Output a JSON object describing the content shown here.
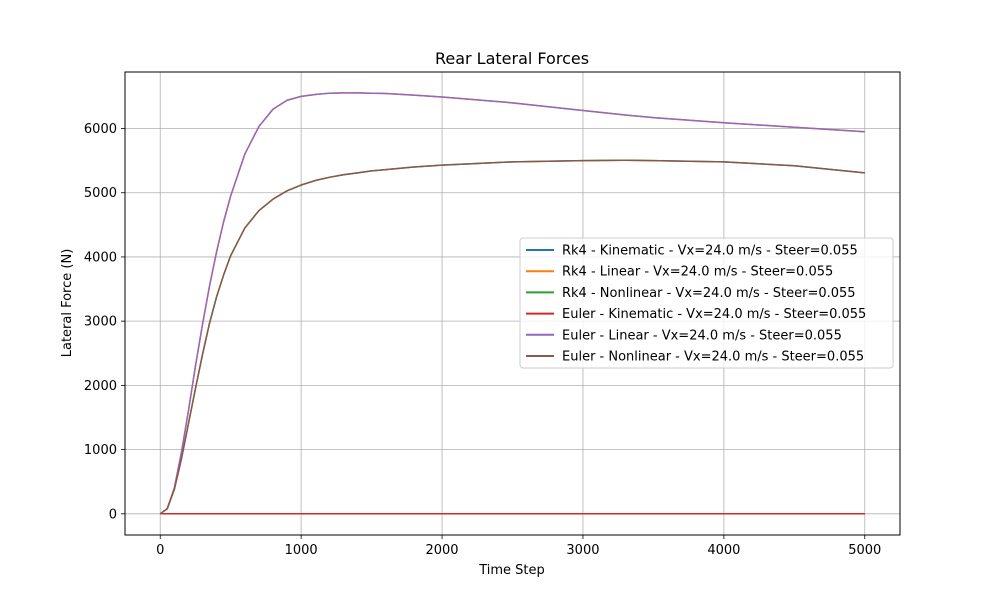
{
  "chart_data": {
    "type": "line",
    "title": "Rear Lateral Forces",
    "xlabel": "Time Step",
    "ylabel": "Lateral Force (N)",
    "xlim": [
      -250,
      5250
    ],
    "ylim": [
      -330,
      6880
    ],
    "xticks": [
      0,
      1000,
      2000,
      3000,
      4000,
      5000
    ],
    "yticks": [
      0,
      1000,
      2000,
      3000,
      4000,
      5000,
      6000
    ],
    "grid": true,
    "legend_position": "center-right",
    "x": [
      0,
      50,
      100,
      150,
      200,
      250,
      300,
      350,
      400,
      450,
      500,
      600,
      700,
      800,
      900,
      1000,
      1100,
      1200,
      1300,
      1400,
      1500,
      1600,
      1800,
      2000,
      2500,
      3000,
      3300,
      3500,
      4000,
      4500,
      5000
    ],
    "series": [
      {
        "name": "Rk4 - Kinematic - Vx=24.0 m/s - Steer=0.055",
        "color": "#1f77b4",
        "values": [
          0,
          0,
          0,
          0,
          0,
          0,
          0,
          0,
          0,
          0,
          0,
          0,
          0,
          0,
          0,
          0,
          0,
          0,
          0,
          0,
          0,
          0,
          0,
          0,
          0,
          0,
          0,
          0,
          0,
          0,
          0
        ]
      },
      {
        "name": "Rk4 - Linear - Vx=24.0 m/s - Steer=0.055",
        "color": "#ff7f0e",
        "values": [
          0,
          80,
          400,
          950,
          1600,
          2300,
          2950,
          3550,
          4080,
          4550,
          4950,
          5600,
          6030,
          6300,
          6440,
          6500,
          6530,
          6550,
          6555,
          6555,
          6550,
          6545,
          6520,
          6490,
          6400,
          6280,
          6210,
          6170,
          6090,
          6020,
          5950
        ]
      },
      {
        "name": "Rk4 - Nonlinear - Vx=24.0 m/s - Steer=0.055",
        "color": "#2ca02c",
        "values": [
          0,
          80,
          380,
          850,
          1400,
          1950,
          2480,
          2970,
          3380,
          3720,
          4020,
          4450,
          4720,
          4900,
          5030,
          5120,
          5190,
          5240,
          5280,
          5310,
          5340,
          5360,
          5400,
          5430,
          5480,
          5500,
          5505,
          5500,
          5480,
          5420,
          5310
        ]
      },
      {
        "name": "Euler - Kinematic - Vx=24.0 m/s - Steer=0.055",
        "color": "#d62728",
        "values": [
          0,
          0,
          0,
          0,
          0,
          0,
          0,
          0,
          0,
          0,
          0,
          0,
          0,
          0,
          0,
          0,
          0,
          0,
          0,
          0,
          0,
          0,
          0,
          0,
          0,
          0,
          0,
          0,
          0,
          0,
          0
        ]
      },
      {
        "name": "Euler - Linear - Vx=24.0 m/s - Steer=0.055",
        "color": "#9467bd",
        "values": [
          0,
          80,
          400,
          950,
          1600,
          2300,
          2950,
          3550,
          4080,
          4550,
          4950,
          5600,
          6030,
          6300,
          6440,
          6500,
          6530,
          6550,
          6555,
          6555,
          6550,
          6545,
          6520,
          6490,
          6400,
          6280,
          6210,
          6170,
          6090,
          6020,
          5950
        ]
      },
      {
        "name": "Euler - Nonlinear - Vx=24.0 m/s - Steer=0.055",
        "color": "#8c564b",
        "values": [
          0,
          80,
          380,
          850,
          1400,
          1950,
          2480,
          2970,
          3380,
          3720,
          4020,
          4450,
          4720,
          4900,
          5030,
          5120,
          5190,
          5240,
          5280,
          5310,
          5340,
          5360,
          5400,
          5430,
          5480,
          5500,
          5505,
          5500,
          5480,
          5420,
          5310
        ]
      }
    ]
  }
}
